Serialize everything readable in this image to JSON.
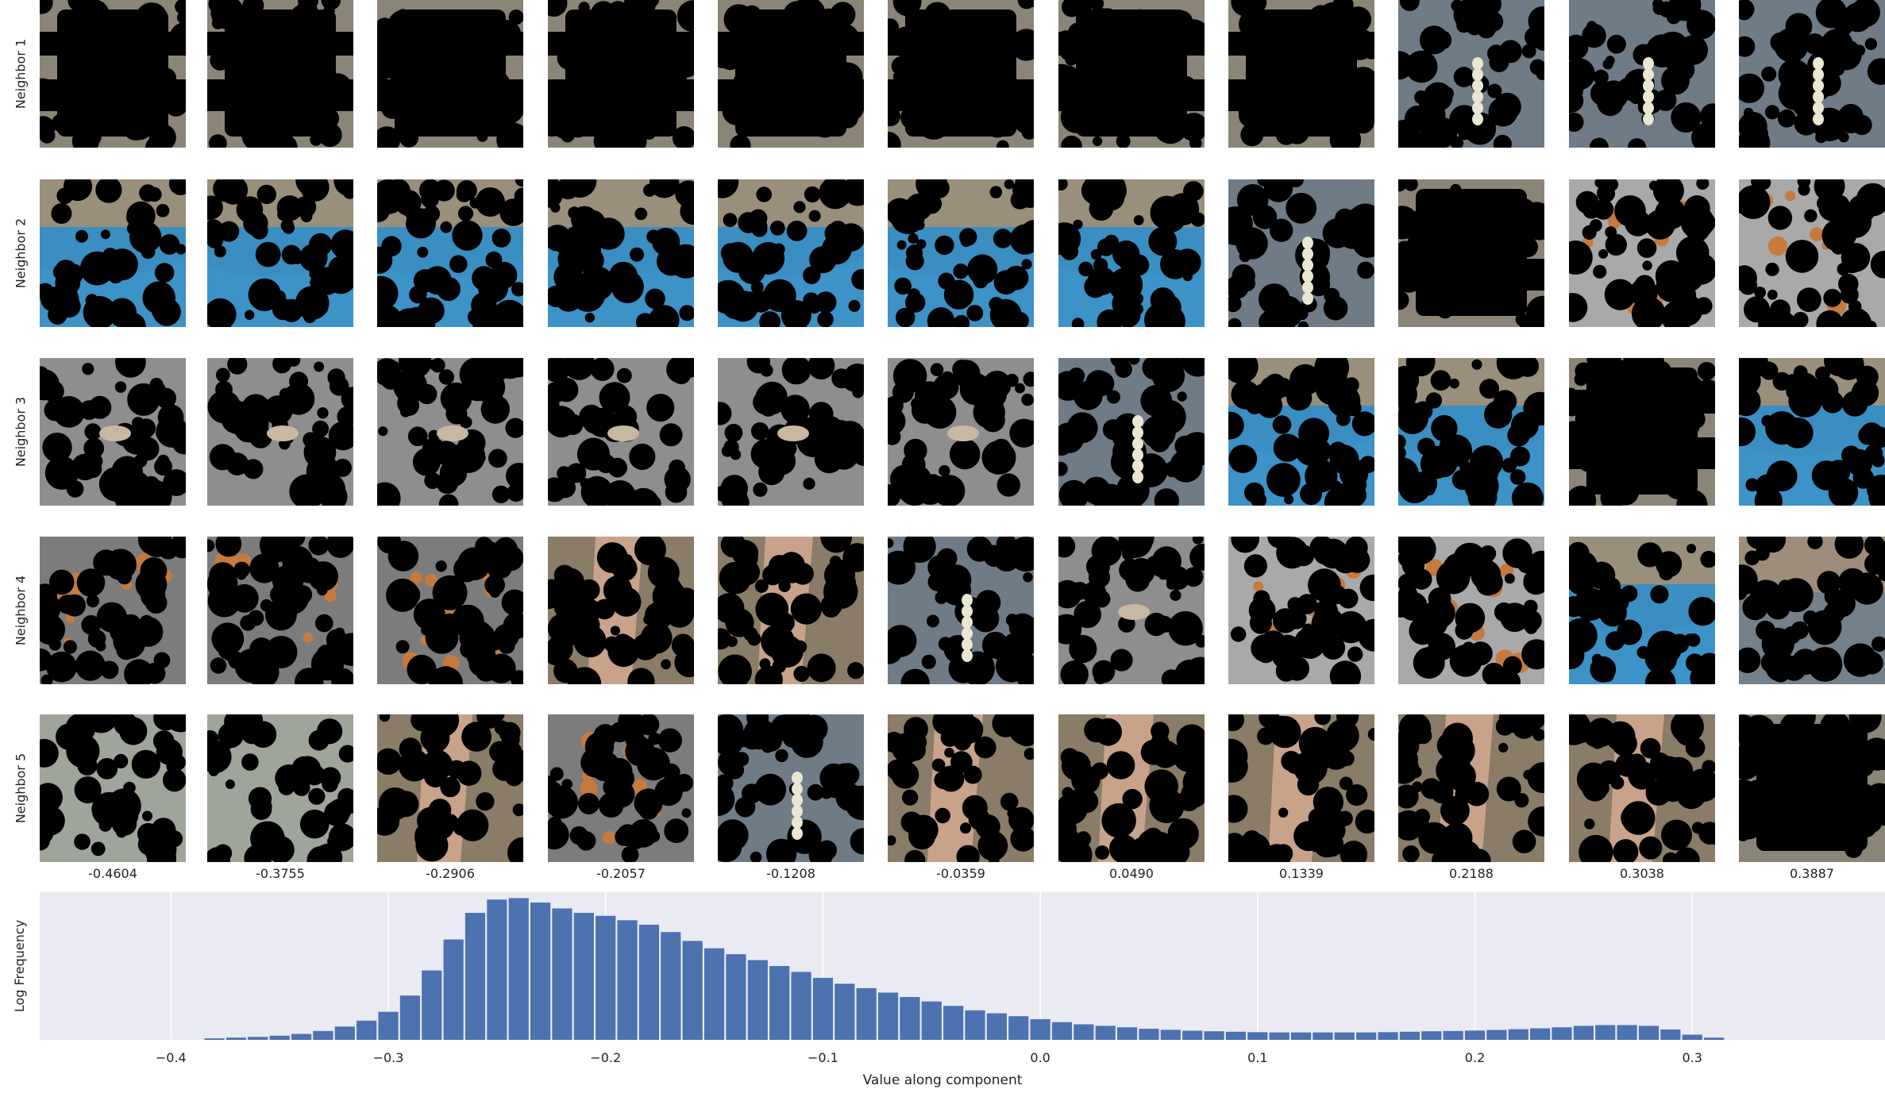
{
  "grid": {
    "row_labels": [
      "Neighbor 1",
      "Neighbor 2",
      "Neighbor 3",
      "Neighbor 4",
      "Neighbor 5"
    ],
    "column_values": [
      "-0.4604",
      "-0.3755",
      "-0.2906",
      "-0.2057",
      "-0.1208",
      "-0.0359",
      "0.0490",
      "0.1339",
      "0.2188",
      "0.3038",
      "0.3887"
    ],
    "tiles": [
      [
        "gray-mask",
        "gray-mask",
        "gray-mask",
        "gray-mask",
        "gray-mask",
        "gray-mask",
        "gray-mask",
        "gray-mask",
        "sky-mask",
        "sky-mask",
        "sky-mask"
      ],
      [
        "blue-water",
        "blue-water",
        "blue-water",
        "blue-water",
        "blue-water",
        "blue-water",
        "blue-water",
        "sky-mask",
        "gray-mask",
        "orange-gray",
        "orange-gray"
      ],
      [
        "fish-gray",
        "fish-gray",
        "fish-gray",
        "fish-gray",
        "fish-gray",
        "fish-gray",
        "sky-mask",
        "blue-water",
        "blue-water",
        "gray-mask",
        "blue-water"
      ],
      [
        "orange-dots",
        "orange-dots",
        "orange-dots",
        "stripe",
        "stripe",
        "sky-mask",
        "fish-gray",
        "orange-gray",
        "orange-gray",
        "blue-water",
        "sunset"
      ],
      [
        "gray-patch",
        "gray-patch",
        "stripe",
        "orange-dots",
        "sky-mask",
        "stripe",
        "stripe",
        "stripe",
        "stripe",
        "stripe",
        "gray-mask"
      ]
    ],
    "tile_colors": {
      "gray-mask": "#8a8577",
      "sky-mask": "#6f7c88",
      "blue-water": "#3a8ec2",
      "orange-gray": "#a9a9a9",
      "fish-gray": "#8e8e8e",
      "orange-dots": "#7c7c7c",
      "stripe": "#8a7c66",
      "gray-patch": "#9fa59a",
      "sunset": "#74808a"
    }
  },
  "chart_data": {
    "type": "bar",
    "xlabel": "Value along component",
    "ylabel": "Log Frequency",
    "xlim": [
      -0.4604,
      0.3887
    ],
    "x_ticks": [
      -0.4,
      -0.3,
      -0.2,
      -0.1,
      0.0,
      0.1,
      0.2,
      0.3
    ],
    "x_tick_labels": [
      "−0.4",
      "−0.3",
      "−0.2",
      "−0.1",
      "0.0",
      "0.1",
      "0.2",
      "0.3"
    ],
    "ylim": [
      0,
      1.0
    ],
    "grid": true,
    "bar_color": "#4c72b0",
    "background": "#eaeaf2",
    "bins": [
      {
        "x": -0.38,
        "y": 0.01
      },
      {
        "x": -0.37,
        "y": 0.015
      },
      {
        "x": -0.36,
        "y": 0.02
      },
      {
        "x": -0.35,
        "y": 0.028
      },
      {
        "x": -0.34,
        "y": 0.04
      },
      {
        "x": -0.33,
        "y": 0.06
      },
      {
        "x": -0.32,
        "y": 0.09
      },
      {
        "x": -0.31,
        "y": 0.13
      },
      {
        "x": -0.3,
        "y": 0.19
      },
      {
        "x": -0.29,
        "y": 0.3
      },
      {
        "x": -0.28,
        "y": 0.47
      },
      {
        "x": -0.27,
        "y": 0.68
      },
      {
        "x": -0.26,
        "y": 0.86
      },
      {
        "x": -0.25,
        "y": 0.95
      },
      {
        "x": -0.24,
        "y": 0.96
      },
      {
        "x": -0.23,
        "y": 0.93
      },
      {
        "x": -0.22,
        "y": 0.89
      },
      {
        "x": -0.21,
        "y": 0.86
      },
      {
        "x": -0.2,
        "y": 0.84
      },
      {
        "x": -0.19,
        "y": 0.81
      },
      {
        "x": -0.18,
        "y": 0.78
      },
      {
        "x": -0.17,
        "y": 0.73
      },
      {
        "x": -0.16,
        "y": 0.67
      },
      {
        "x": -0.15,
        "y": 0.62
      },
      {
        "x": -0.14,
        "y": 0.58
      },
      {
        "x": -0.13,
        "y": 0.54
      },
      {
        "x": -0.12,
        "y": 0.5
      },
      {
        "x": -0.11,
        "y": 0.46
      },
      {
        "x": -0.1,
        "y": 0.42
      },
      {
        "x": -0.09,
        "y": 0.38
      },
      {
        "x": -0.08,
        "y": 0.35
      },
      {
        "x": -0.07,
        "y": 0.32
      },
      {
        "x": -0.06,
        "y": 0.29
      },
      {
        "x": -0.05,
        "y": 0.26
      },
      {
        "x": -0.04,
        "y": 0.23
      },
      {
        "x": -0.03,
        "y": 0.2
      },
      {
        "x": -0.02,
        "y": 0.18
      },
      {
        "x": -0.01,
        "y": 0.16
      },
      {
        "x": 0.0,
        "y": 0.14
      },
      {
        "x": 0.01,
        "y": 0.12
      },
      {
        "x": 0.02,
        "y": 0.105
      },
      {
        "x": 0.03,
        "y": 0.095
      },
      {
        "x": 0.04,
        "y": 0.085
      },
      {
        "x": 0.05,
        "y": 0.075
      },
      {
        "x": 0.06,
        "y": 0.068
      },
      {
        "x": 0.07,
        "y": 0.062
      },
      {
        "x": 0.08,
        "y": 0.058
      },
      {
        "x": 0.09,
        "y": 0.055
      },
      {
        "x": 0.1,
        "y": 0.052
      },
      {
        "x": 0.11,
        "y": 0.05
      },
      {
        "x": 0.12,
        "y": 0.05
      },
      {
        "x": 0.13,
        "y": 0.05
      },
      {
        "x": 0.14,
        "y": 0.05
      },
      {
        "x": 0.15,
        "y": 0.05
      },
      {
        "x": 0.16,
        "y": 0.052
      },
      {
        "x": 0.17,
        "y": 0.055
      },
      {
        "x": 0.18,
        "y": 0.058
      },
      {
        "x": 0.19,
        "y": 0.06
      },
      {
        "x": 0.2,
        "y": 0.063
      },
      {
        "x": 0.21,
        "y": 0.067
      },
      {
        "x": 0.22,
        "y": 0.072
      },
      {
        "x": 0.23,
        "y": 0.078
      },
      {
        "x": 0.24,
        "y": 0.085
      },
      {
        "x": 0.25,
        "y": 0.095
      },
      {
        "x": 0.26,
        "y": 0.1
      },
      {
        "x": 0.27,
        "y": 0.1
      },
      {
        "x": 0.28,
        "y": 0.095
      },
      {
        "x": 0.29,
        "y": 0.07
      },
      {
        "x": 0.3,
        "y": 0.035
      },
      {
        "x": 0.31,
        "y": 0.015
      }
    ]
  }
}
